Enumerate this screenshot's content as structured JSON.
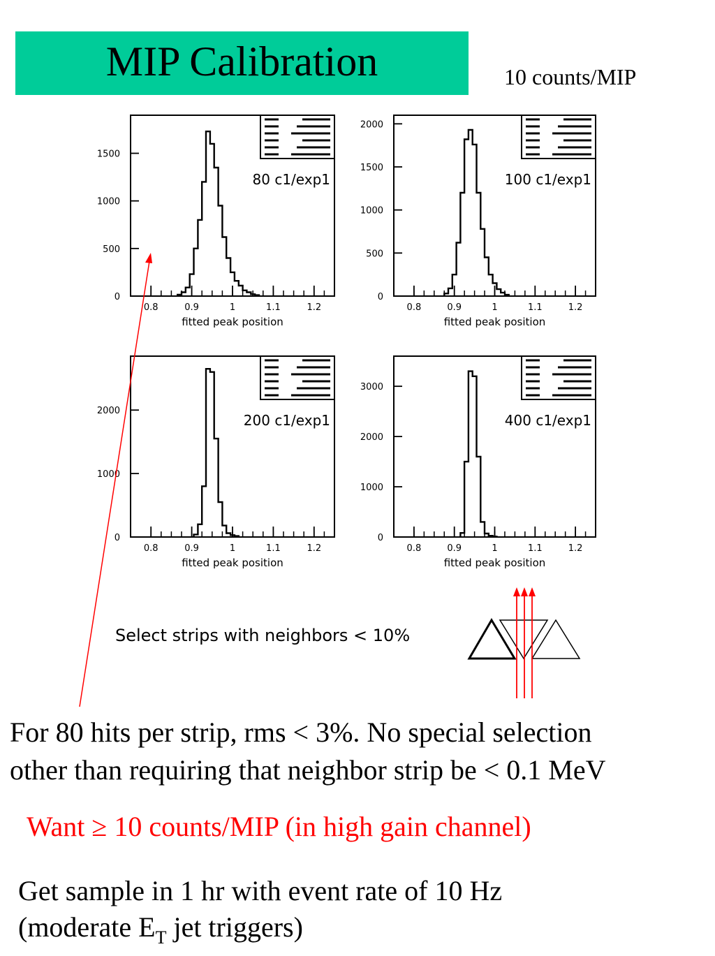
{
  "slide": {
    "title": "MIP Calibration",
    "counts_note": "10 counts/MIP",
    "strip_note": "Select strips with neighbors < 10%",
    "body_line1": "For 80 hits per strip,  rms < 3%.   No special selection",
    "body_line2": "other than requiring that neighbor strip be < 0.1 MeV",
    "want_prefix": "Want ",
    "want_symbol": "≥",
    "want_rest": " 10 counts/MIP  (in high gain channel)",
    "sample_line1": "Get sample in 1 hr with event rate of 10 Hz",
    "sample_line2_a": "(moderate E",
    "sample_line2_sub": "T",
    "sample_line2_b": " jet triggers)",
    "accent_color": "#00cc99",
    "highlight_color": "#ff0000"
  },
  "chart_data": [
    {
      "type": "bar",
      "label": "80 c1/exp1",
      "xlabel": "fitted peak position",
      "xlim": [
        0.75,
        1.25
      ],
      "ylim": [
        0,
        1900
      ],
      "yticks": [
        0,
        500,
        1000,
        1500
      ],
      "ytick_labels": [
        "0",
        "500",
        "1000",
        "1500"
      ],
      "xticks": [
        0.8,
        0.9,
        1.0,
        1.1,
        1.2
      ],
      "xtick_labels": [
        "0.8",
        "0.9",
        "1",
        "1.1",
        "1.2"
      ],
      "bin_width": 0.01,
      "bins": [
        [
          0.87,
          15
        ],
        [
          0.88,
          40
        ],
        [
          0.89,
          90
        ],
        [
          0.9,
          230
        ],
        [
          0.91,
          500
        ],
        [
          0.92,
          800
        ],
        [
          0.93,
          1200
        ],
        [
          0.94,
          1730
        ],
        [
          0.95,
          1600
        ],
        [
          0.96,
          1350
        ],
        [
          0.97,
          950
        ],
        [
          0.98,
          620
        ],
        [
          0.99,
          400
        ],
        [
          1.0,
          250
        ],
        [
          1.01,
          160
        ],
        [
          1.02,
          110
        ],
        [
          1.03,
          60
        ],
        [
          1.04,
          40
        ],
        [
          1.05,
          20
        ],
        [
          1.06,
          10
        ]
      ]
    },
    {
      "type": "bar",
      "label": "100 c1/exp1",
      "xlabel": "fitted peak position",
      "xlim": [
        0.75,
        1.25
      ],
      "ylim": [
        0,
        2100
      ],
      "yticks": [
        0,
        500,
        1000,
        1500,
        2000
      ],
      "ytick_labels": [
        "0",
        "500",
        "1000",
        "1500",
        "2000"
      ],
      "xticks": [
        0.8,
        0.9,
        1.0,
        1.1,
        1.2
      ],
      "xtick_labels": [
        "0.8",
        "0.9",
        "1",
        "1.1",
        "1.2"
      ],
      "bin_width": 0.01,
      "bins": [
        [
          0.88,
          30
        ],
        [
          0.89,
          90
        ],
        [
          0.9,
          250
        ],
        [
          0.91,
          620
        ],
        [
          0.92,
          1200
        ],
        [
          0.93,
          1820
        ],
        [
          0.94,
          1930
        ],
        [
          0.95,
          1760
        ],
        [
          0.96,
          1200
        ],
        [
          0.97,
          780
        ],
        [
          0.98,
          450
        ],
        [
          0.99,
          250
        ],
        [
          1.0,
          150
        ],
        [
          1.01,
          80
        ],
        [
          1.02,
          40
        ],
        [
          1.03,
          15
        ]
      ]
    },
    {
      "type": "bar",
      "label": "200 c1/exp1",
      "xlabel": "fitted peak position",
      "xlim": [
        0.75,
        1.25
      ],
      "ylim": [
        0,
        2850
      ],
      "yticks": [
        0,
        1000,
        2000
      ],
      "ytick_labels": [
        "0",
        "1000",
        "2000"
      ],
      "xticks": [
        0.8,
        0.9,
        1.0,
        1.1,
        1.2
      ],
      "xtick_labels": [
        "0.8",
        "0.9",
        "1",
        "1.1",
        "1.2"
      ],
      "bin_width": 0.01,
      "bins": [
        [
          0.91,
          40
        ],
        [
          0.92,
          200
        ],
        [
          0.93,
          800
        ],
        [
          0.94,
          2650
        ],
        [
          0.95,
          2600
        ],
        [
          0.96,
          1550
        ],
        [
          0.97,
          550
        ],
        [
          0.98,
          180
        ],
        [
          0.99,
          60
        ],
        [
          1.0,
          30
        ],
        [
          1.01,
          15
        ]
      ]
    },
    {
      "type": "bar",
      "label": "400 c1/exp1",
      "xlabel": "fitted peak position",
      "xlim": [
        0.75,
        1.25
      ],
      "ylim": [
        0,
        3600
      ],
      "yticks": [
        0,
        1000,
        2000,
        3000
      ],
      "ytick_labels": [
        "0",
        "1000",
        "2000",
        "3000"
      ],
      "xticks": [
        0.8,
        0.9,
        1.0,
        1.1,
        1.2
      ],
      "xtick_labels": [
        "0.8",
        "0.9",
        "1",
        "1.1",
        "1.2"
      ],
      "bin_width": 0.01,
      "bins": [
        [
          0.92,
          80
        ],
        [
          0.93,
          1500
        ],
        [
          0.94,
          3300
        ],
        [
          0.95,
          3200
        ],
        [
          0.96,
          1600
        ],
        [
          0.97,
          300
        ],
        [
          0.98,
          70
        ],
        [
          0.99,
          25
        ],
        [
          1.0,
          10
        ]
      ]
    }
  ]
}
